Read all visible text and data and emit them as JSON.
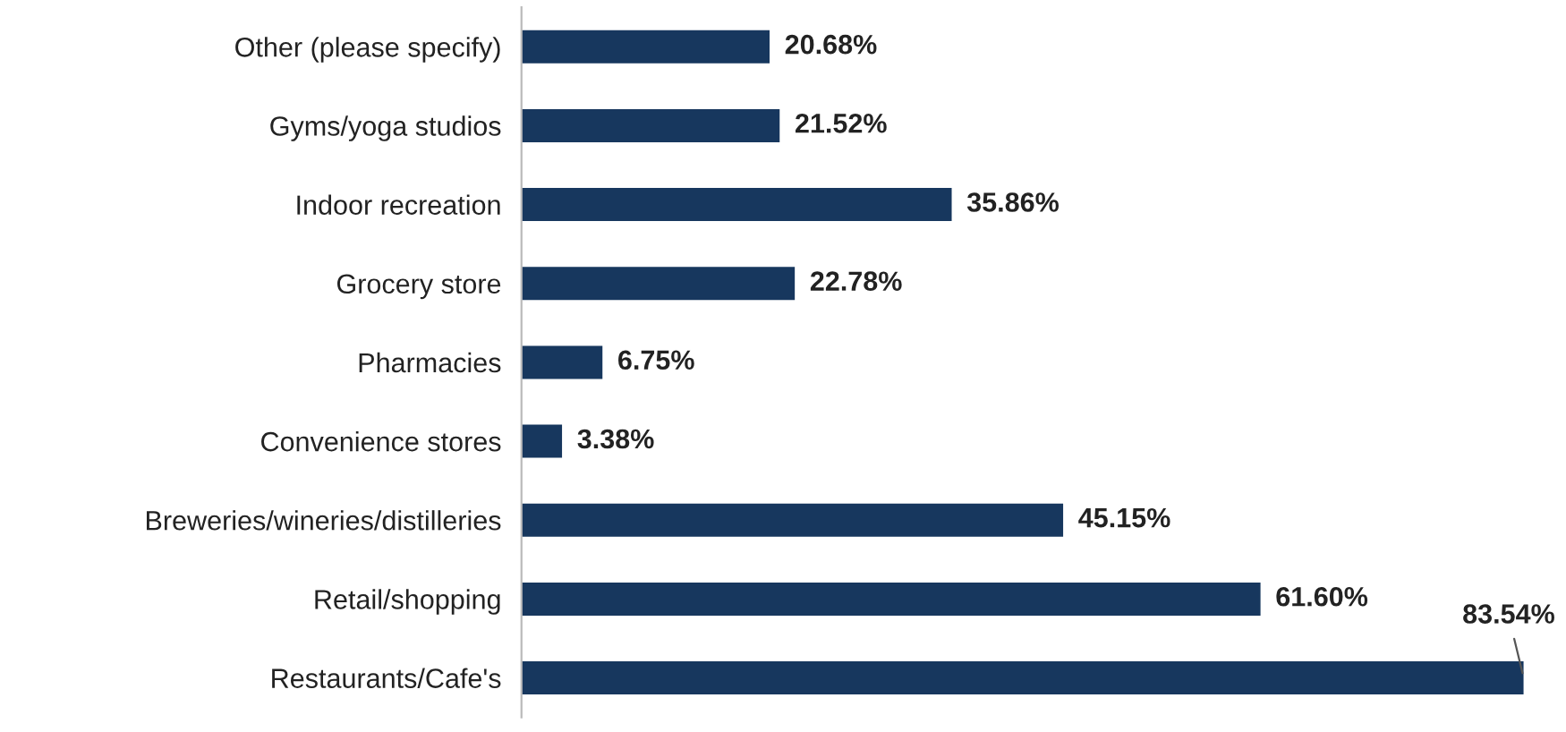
{
  "chart_data": {
    "type": "bar",
    "orientation": "horizontal",
    "categories": [
      "Other (please specify)",
      "Gyms/yoga studios",
      "Indoor recreation",
      "Grocery store",
      "Pharmacies",
      "Convenience stores",
      "Breweries/wineries/distilleries",
      "Retail/shopping",
      "Restaurants/Cafe's"
    ],
    "values": [
      20.68,
      21.52,
      35.86,
      22.78,
      6.75,
      3.38,
      45.15,
      61.6,
      83.54
    ],
    "value_labels": [
      "20.68%",
      "21.52%",
      "35.86%",
      "22.78%",
      "6.75%",
      "3.38%",
      "45.15%",
      "61.60%",
      "83.54%"
    ],
    "color": "#17375e",
    "grid": false,
    "legend": false
  }
}
